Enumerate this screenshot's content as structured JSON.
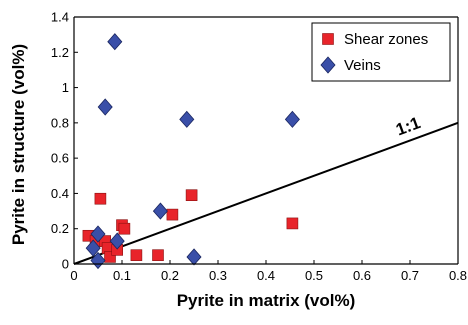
{
  "chart_data": {
    "type": "scatter",
    "xlabel": "Pyrite in matrix (vol%)",
    "ylabel": "Pyrite in structure (vol%)",
    "xlim": [
      0,
      0.8
    ],
    "ylim": [
      0,
      1.4
    ],
    "x_ticks": [
      "0",
      "0.1",
      "0.2",
      "0.3",
      "0.4",
      "0.5",
      "0.6",
      "0.7",
      "0.8"
    ],
    "y_ticks": [
      "0",
      "0.2",
      "0.4",
      "0.6",
      "0.8",
      "1",
      "1.2",
      "1.4"
    ],
    "grid": false,
    "legend_position": "top-right",
    "reference_line": {
      "label": "1:1",
      "slope": 1,
      "color": "#000000"
    },
    "series": [
      {
        "name": "Shear zones",
        "marker": "square",
        "color": "#e8242a",
        "points": [
          {
            "x": 0.03,
            "y": 0.16
          },
          {
            "x": 0.045,
            "y": 0.13
          },
          {
            "x": 0.055,
            "y": 0.37
          },
          {
            "x": 0.065,
            "y": 0.13
          },
          {
            "x": 0.07,
            "y": 0.09
          },
          {
            "x": 0.075,
            "y": 0.04
          },
          {
            "x": 0.09,
            "y": 0.08
          },
          {
            "x": 0.1,
            "y": 0.22
          },
          {
            "x": 0.105,
            "y": 0.2
          },
          {
            "x": 0.13,
            "y": 0.05
          },
          {
            "x": 0.175,
            "y": 0.05
          },
          {
            "x": 0.205,
            "y": 0.28
          },
          {
            "x": 0.245,
            "y": 0.39
          },
          {
            "x": 0.455,
            "y": 0.23
          }
        ]
      },
      {
        "name": "Veins",
        "marker": "diamond",
        "color": "#3a4fa8",
        "points": [
          {
            "x": 0.04,
            "y": 0.09
          },
          {
            "x": 0.05,
            "y": 0.17
          },
          {
            "x": 0.05,
            "y": 0.02
          },
          {
            "x": 0.065,
            "y": 0.89
          },
          {
            "x": 0.085,
            "y": 1.26
          },
          {
            "x": 0.09,
            "y": 0.13
          },
          {
            "x": 0.18,
            "y": 0.3
          },
          {
            "x": 0.235,
            "y": 0.82
          },
          {
            "x": 0.25,
            "y": 0.04
          },
          {
            "x": 0.455,
            "y": 0.82
          }
        ]
      }
    ]
  }
}
